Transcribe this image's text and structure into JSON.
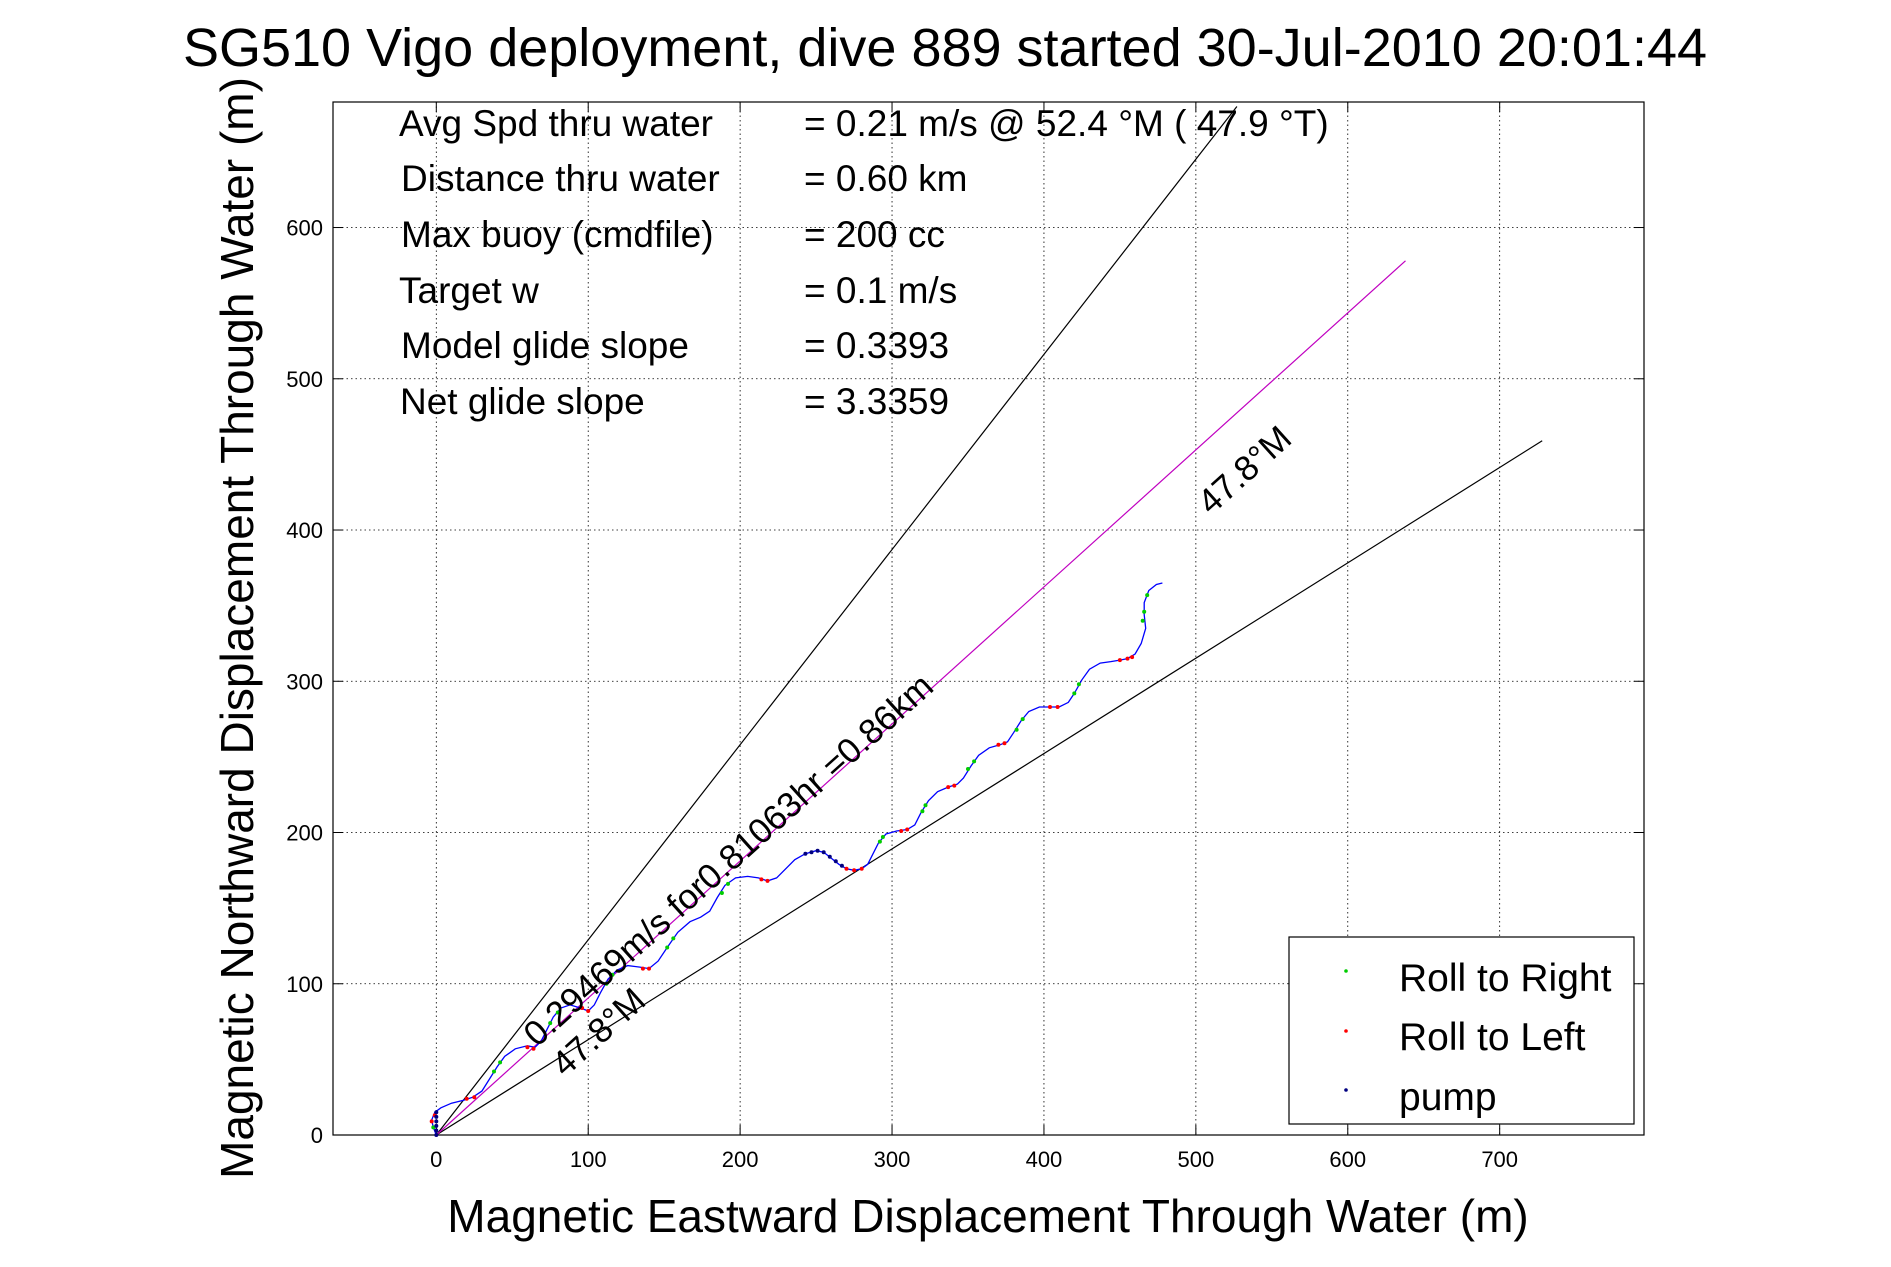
{
  "chart_data": {
    "type": "line",
    "title": "SG510 Vigo deployment, dive 889 started 30-Jul-2010 20:01:44",
    "xlabel": "Magnetic Eastward Displacement Through Water (m)",
    "ylabel": "Magnetic Northward Displacement Through Water (m)",
    "xlim": [
      -68,
      795
    ],
    "ylim": [
      0,
      683
    ],
    "xticks": [
      0,
      100,
      200,
      300,
      400,
      500,
      600,
      700
    ],
    "yticks": [
      0,
      100,
      200,
      300,
      400,
      500,
      600
    ],
    "xtick_labels": [
      "0",
      "100",
      "200",
      "300",
      "400",
      "500",
      "600",
      "700"
    ],
    "ytick_labels": [
      "0",
      "100",
      "200",
      "300",
      "400",
      "500",
      "600"
    ],
    "grid": true,
    "legend_position": "bottom-right",
    "info_lines": [
      {
        "label": "Avg Spd thru water",
        "value": "=  0.21 m/s @  52.4 °M ( 47.9 °T)"
      },
      {
        "label": "Distance thru water",
        "value": "=  0.60 km"
      },
      {
        "label": "Max buoy (cmdfile)",
        "value": "= 200 cc"
      },
      {
        "label": "Target w",
        "value": "= 0.1 m/s"
      },
      {
        "label": "Model glide slope",
        "value": "= 0.3393"
      },
      {
        "label": "Net glide slope",
        "value": "= 3.3359"
      }
    ],
    "annotations": {
      "heading_line_label": "47.8°M",
      "lower_line_label": "47.8°M",
      "speed_label": "0.29469m/s for0.81063hr =0.86km"
    },
    "reference_lines": [
      {
        "name": "steep",
        "color": "#000000",
        "points": [
          [
            0,
            0
          ],
          [
            527,
            680
          ]
        ]
      },
      {
        "name": "shallow",
        "color": "#000000",
        "points": [
          [
            0,
            0
          ],
          [
            728,
            459
          ]
        ]
      },
      {
        "name": "heading",
        "color": "#c000c0",
        "points": [
          [
            0,
            0
          ],
          [
            638,
            578
          ]
        ]
      }
    ],
    "series": [
      {
        "name": "",
        "color": "#0000ff",
        "style": "line",
        "points": [
          [
            0,
            0
          ],
          [
            -2,
            5
          ],
          [
            -3,
            10
          ],
          [
            -1,
            15
          ],
          [
            3,
            18
          ],
          [
            10,
            21
          ],
          [
            18,
            23
          ],
          [
            24,
            25
          ],
          [
            30,
            29
          ],
          [
            35,
            37
          ],
          [
            40,
            45
          ],
          [
            45,
            52
          ],
          [
            52,
            57
          ],
          [
            60,
            59
          ],
          [
            65,
            58
          ],
          [
            69,
            62
          ],
          [
            73,
            70
          ],
          [
            77,
            78
          ],
          [
            82,
            84
          ],
          [
            88,
            86
          ],
          [
            95,
            84
          ],
          [
            100,
            82
          ],
          [
            104,
            86
          ],
          [
            108,
            94
          ],
          [
            113,
            103
          ],
          [
            119,
            109
          ],
          [
            126,
            112
          ],
          [
            134,
            111
          ],
          [
            140,
            110
          ],
          [
            146,
            115
          ],
          [
            152,
            124
          ],
          [
            159,
            134
          ],
          [
            167,
            141
          ],
          [
            174,
            144
          ],
          [
            180,
            148
          ],
          [
            185,
            157
          ],
          [
            190,
            165
          ],
          [
            197,
            170
          ],
          [
            205,
            171
          ],
          [
            212,
            170
          ],
          [
            218,
            168
          ],
          [
            224,
            170
          ],
          [
            230,
            176
          ],
          [
            236,
            182
          ],
          [
            243,
            186
          ],
          [
            250,
            188
          ],
          [
            255,
            187
          ],
          [
            260,
            183
          ],
          [
            265,
            179
          ],
          [
            270,
            176
          ],
          [
            275,
            175
          ],
          [
            280,
            176
          ],
          [
            284,
            179
          ],
          [
            287,
            185
          ],
          [
            291,
            193
          ],
          [
            296,
            199
          ],
          [
            303,
            201
          ],
          [
            310,
            202
          ],
          [
            315,
            205
          ],
          [
            319,
            213
          ],
          [
            324,
            221
          ],
          [
            330,
            227
          ],
          [
            337,
            230
          ],
          [
            343,
            232
          ],
          [
            347,
            236
          ],
          [
            352,
            244
          ],
          [
            357,
            251
          ],
          [
            364,
            256
          ],
          [
            371,
            258
          ],
          [
            376,
            260
          ],
          [
            380,
            266
          ],
          [
            385,
            274
          ],
          [
            390,
            280
          ],
          [
            397,
            283
          ],
          [
            404,
            283
          ],
          [
            410,
            283
          ],
          [
            416,
            286
          ],
          [
            420,
            292
          ],
          [
            425,
            301
          ],
          [
            430,
            308
          ],
          [
            437,
            312
          ],
          [
            444,
            313
          ],
          [
            450,
            314
          ],
          [
            455,
            315
          ],
          [
            460,
            318
          ],
          [
            464,
            325
          ],
          [
            467,
            335
          ],
          [
            466,
            344
          ],
          [
            466,
            352
          ],
          [
            469,
            360
          ],
          [
            474,
            364
          ],
          [
            478,
            365
          ]
        ]
      },
      {
        "name": "Roll to Right",
        "color": "#00cc00",
        "style": "dots",
        "points": [
          [
            -2,
            5
          ],
          [
            38,
            42
          ],
          [
            42,
            48
          ],
          [
            75,
            74
          ],
          [
            80,
            81
          ],
          [
            112,
            100
          ],
          [
            116,
            106
          ],
          [
            152,
            124
          ],
          [
            156,
            130
          ],
          [
            188,
            160
          ],
          [
            192,
            166
          ],
          [
            292,
            194
          ],
          [
            294,
            197
          ],
          [
            320,
            214
          ],
          [
            322,
            218
          ],
          [
            350,
            242
          ],
          [
            354,
            247
          ],
          [
            382,
            268
          ],
          [
            386,
            275
          ],
          [
            420,
            292
          ],
          [
            423,
            298
          ],
          [
            465,
            340
          ],
          [
            466,
            346
          ],
          [
            468,
            357
          ]
        ]
      },
      {
        "name": "Roll to Left",
        "color": "#ff0000",
        "style": "dots",
        "points": [
          [
            -1,
            13
          ],
          [
            -3,
            9
          ],
          [
            20,
            24
          ],
          [
            25,
            25
          ],
          [
            60,
            58
          ],
          [
            64,
            57
          ],
          [
            96,
            84
          ],
          [
            100,
            82
          ],
          [
            136,
            110
          ],
          [
            140,
            110
          ],
          [
            214,
            169
          ],
          [
            218,
            168
          ],
          [
            270,
            176
          ],
          [
            275,
            175
          ],
          [
            280,
            176
          ],
          [
            306,
            201
          ],
          [
            310,
            202
          ],
          [
            337,
            230
          ],
          [
            341,
            231
          ],
          [
            370,
            258
          ],
          [
            374,
            259
          ],
          [
            404,
            283
          ],
          [
            409,
            283
          ],
          [
            450,
            314
          ],
          [
            455,
            315
          ],
          [
            458,
            316
          ]
        ]
      },
      {
        "name": "pump",
        "color": "#000080",
        "style": "dots",
        "points": [
          [
            0,
            0
          ],
          [
            0,
            3
          ],
          [
            0,
            6
          ],
          [
            0,
            9
          ],
          [
            0,
            12
          ],
          [
            0,
            15
          ],
          [
            243,
            186
          ],
          [
            247,
            187
          ],
          [
            251,
            188
          ],
          [
            255,
            187
          ],
          [
            259,
            184
          ],
          [
            263,
            181
          ],
          [
            267,
            178
          ]
        ]
      }
    ]
  }
}
